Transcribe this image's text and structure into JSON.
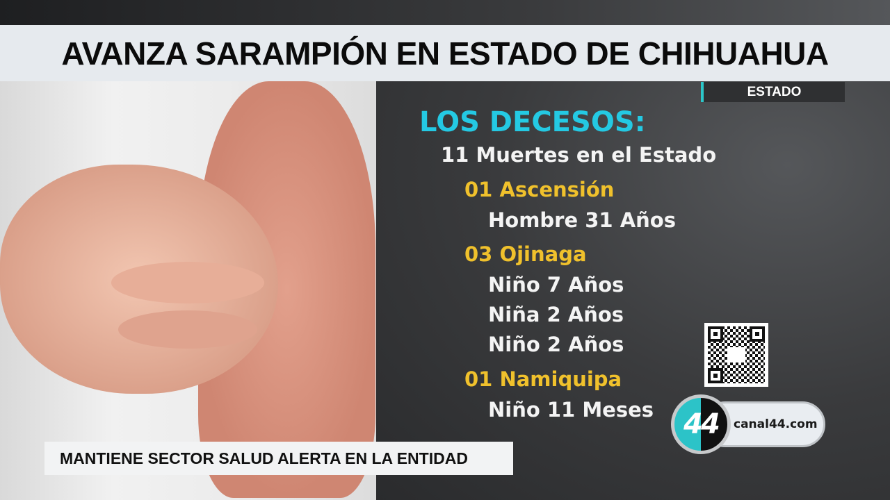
{
  "headline": "AVANZA SARAMPIÓN EN ESTADO DE CHIHUAHUA",
  "section_tag": "ESTADO",
  "content": {
    "heading": "LOS DECESOS:",
    "summary": "11 Muertes en el Estado",
    "groups": [
      {
        "place": "01 Ascensión",
        "cases": [
          "Hombre 31 Años"
        ]
      },
      {
        "place": "03 Ojinaga",
        "cases": [
          "Niño 7 Años",
          "Niña 2 Años",
          "Niño 2 Años"
        ]
      },
      {
        "place": "01 Namiquipa",
        "cases": [
          "Niño 11 Meses"
        ]
      }
    ]
  },
  "lower_third": "MANTIENE SECTOR SALUD ALERTA EN LA ENTIDAD",
  "brand": {
    "logo_text": "44",
    "url": "canal44.com"
  },
  "colors": {
    "heading": "#24c9e3",
    "place": "#f0c12c",
    "accent": "#2cc6c9"
  }
}
